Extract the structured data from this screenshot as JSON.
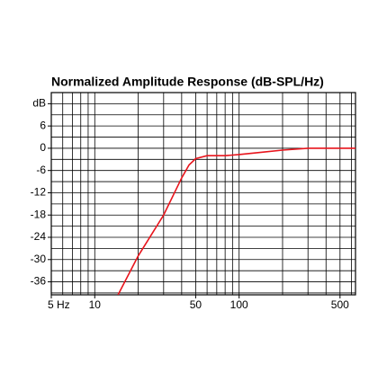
{
  "chart_data": {
    "type": "line",
    "title": "Normalized Amplitude Response (dB-SPL/Hz)",
    "log_x": true,
    "xlim": [
      5,
      640
    ],
    "ylim": [
      -39.5,
      15
    ],
    "xticks": [
      {
        "value": 5,
        "label": "5 Hz"
      },
      10,
      50,
      100,
      500
    ],
    "yticks": [
      {
        "value": 12,
        "label": "dB"
      },
      6,
      0,
      -6,
      -12,
      -18,
      -24,
      -30,
      -36
    ],
    "xgrid": [
      5,
      6,
      7,
      8,
      9,
      10,
      20,
      30,
      40,
      50,
      60,
      70,
      80,
      90,
      100,
      200,
      300,
      400,
      500,
      600
    ],
    "ygrid": [
      12,
      9,
      6,
      3,
      0,
      -3,
      -6,
      -9,
      -12,
      -15,
      -18,
      -21,
      -24,
      -27,
      -30,
      -33,
      -36,
      -39
    ],
    "grid": true,
    "series": [
      {
        "color": "#e8141c",
        "x": [
          14.5,
          20,
          30,
          40,
          45,
          50,
          60,
          80,
          100,
          150,
          200,
          300,
          640
        ],
        "values": [
          -39.5,
          -29,
          -18,
          -8,
          -4.5,
          -2.8,
          -2,
          -2,
          -1.7,
          -1,
          -0.5,
          0,
          0
        ]
      }
    ]
  }
}
